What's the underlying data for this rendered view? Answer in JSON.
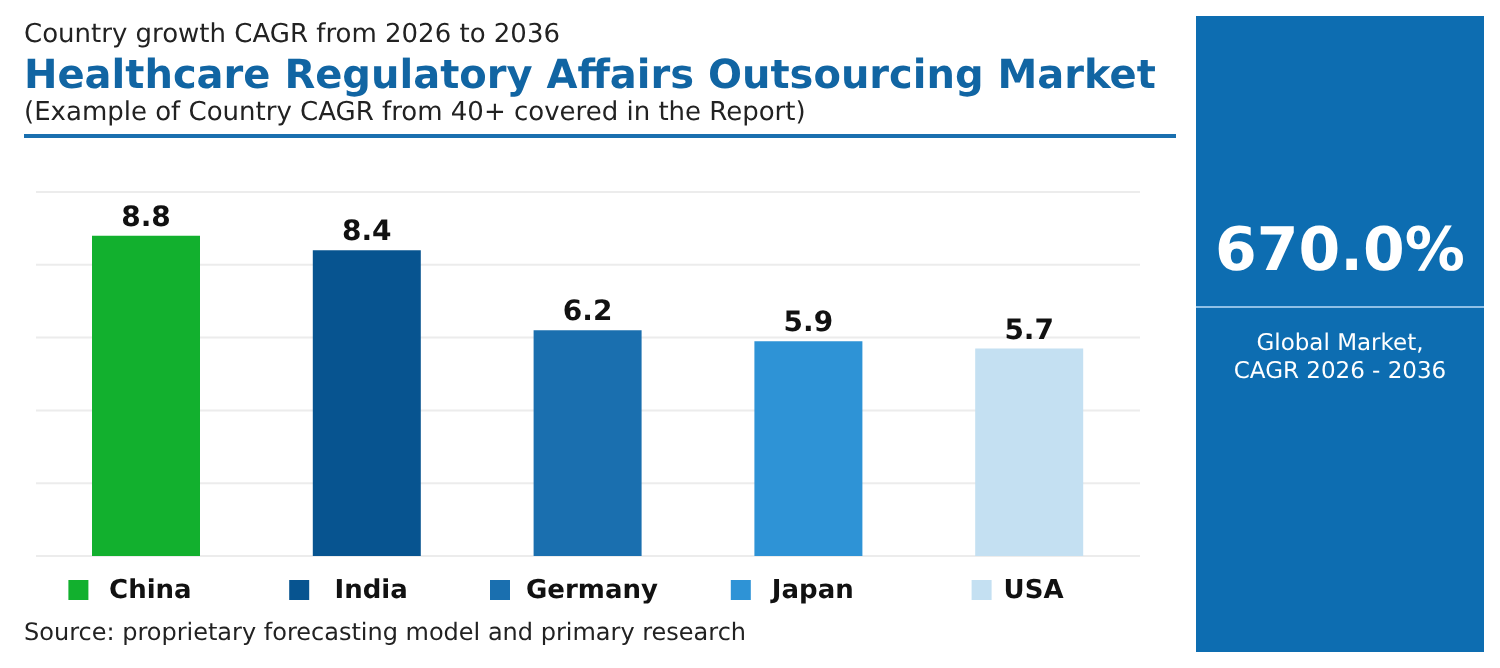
{
  "chart_data": {
    "type": "bar",
    "title": "Healthcare Regulatory Affairs Outsourcing Market",
    "subtitle": "Country growth CAGR from 2026 to 2036\n(Example of Country CAGR from 40+ covered in the Report)",
    "categories": [
      "China",
      "India",
      "Germany",
      "Japan",
      "USA"
    ],
    "values": [
      8.8,
      8.4,
      6.2,
      5.9,
      5.7
    ],
    "colors": [
      "#12b02e",
      "#075490",
      "#1a6faf",
      "#2e93d6",
      "#c4e0f2"
    ],
    "ylim": [
      0,
      10
    ],
    "yticks": [
      {
        "value": 0,
        "label": null
      },
      {
        "value": 2,
        "label": null
      },
      {
        "value": 4,
        "label": null
      },
      {
        "value": 6,
        "label": null
      },
      {
        "value": 8,
        "label": null
      },
      {
        "value": 10,
        "label": null
      }
    ],
    "tick_labels": "x",
    "grid": "y",
    "data_labels": true,
    "annotations": [
      "670.0%",
      "Global Market,\nCAGR 2026 - 2036",
      "Source: proprietary forecasting model and primary research"
    ]
  }
}
